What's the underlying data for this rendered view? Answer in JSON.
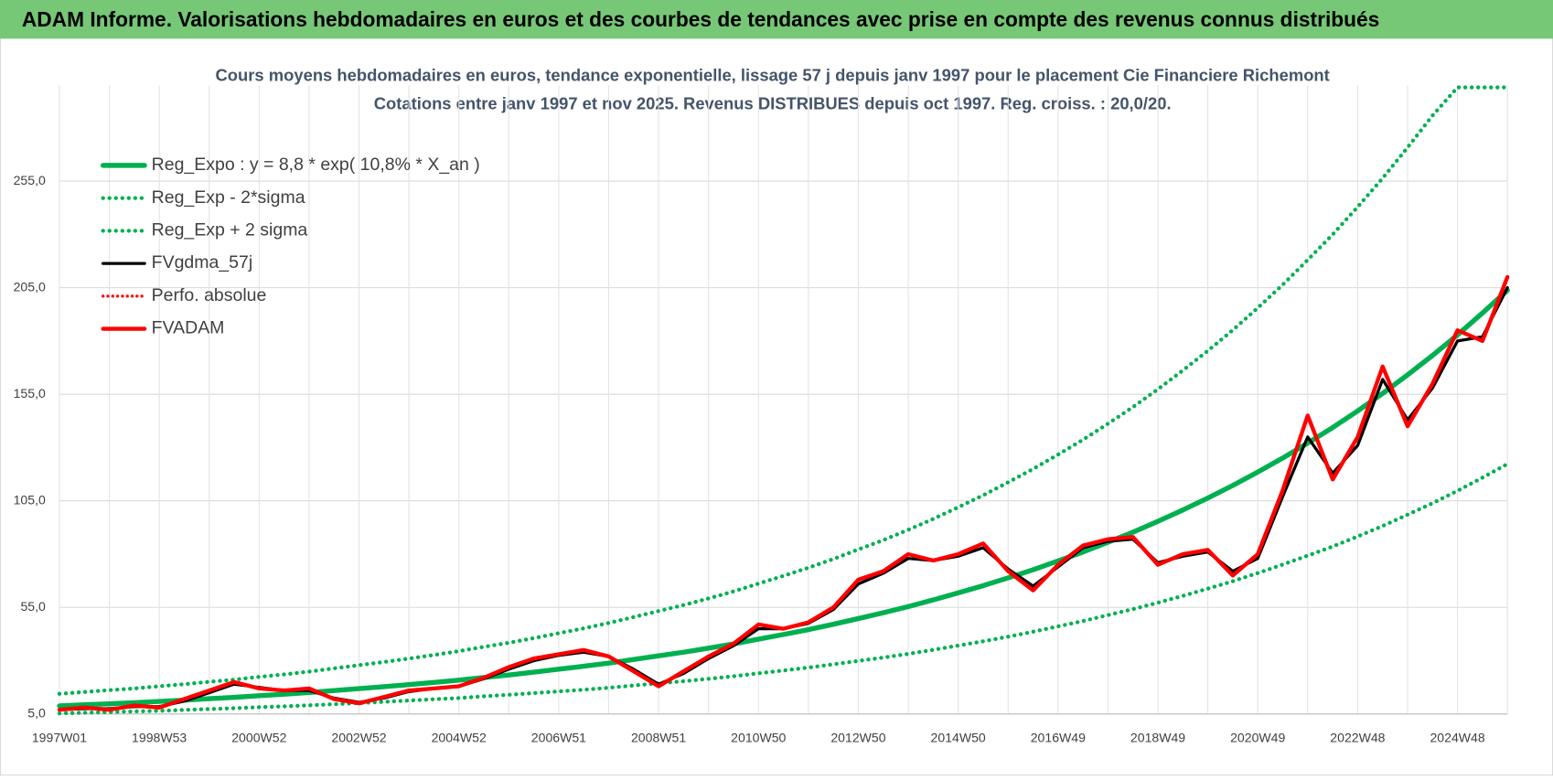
{
  "header": "ADAM Informe. Valorisations hebdomadaires en euros et des courbes de tendances avec prise en compte des revenus connus distribués",
  "chart_data": {
    "type": "line",
    "title": "Cours moyens hebdomadaires en euros, tendance exponentielle, lissage 57 j depuis janv 1997  pour le placement Cie Financiere Richemont",
    "subtitle": "Cotations entre janv 1997 et nov 2025. Revenus DISTRIBUES depuis oct 1997. Reg. croiss. : 20,0/20.",
    "categories": [
      "1997W01",
      null,
      null,
      null,
      "1998W53",
      null,
      null,
      null,
      "2000W52",
      null,
      null,
      null,
      "2002W52",
      null,
      null,
      null,
      "2004W52",
      null,
      null,
      null,
      "2006W51",
      null,
      null,
      null,
      "2008W51",
      null,
      null,
      null,
      "2010W50",
      null,
      null,
      null,
      "2012W50",
      null,
      null,
      null,
      "2014W50",
      null,
      null,
      null,
      "2016W49",
      null,
      null,
      null,
      "2018W49",
      null,
      null,
      null,
      "2020W49",
      null,
      null,
      null,
      "2022W48",
      null,
      null,
      null,
      "2024W48",
      null,
      null
    ],
    "ylim": [
      5,
      300
    ],
    "yticks": [
      {
        "value": 5,
        "label": "5,0"
      },
      {
        "value": 55,
        "label": "55,0"
      },
      {
        "value": 105,
        "label": "105,0"
      },
      {
        "value": 155,
        "label": "155,0"
      },
      {
        "value": 205,
        "label": "205,0"
      },
      {
        "value": 255,
        "label": "255,0"
      }
    ],
    "grid": true,
    "legend": "top-left",
    "series": [
      {
        "name": "Reg_Expo : y = 8,8 * exp( 10,8% *  X_an )",
        "color": "#00b050",
        "dash": "solid",
        "width": 5,
        "values": [
          8.8,
          9.3,
          9.8,
          10.3,
          10.9,
          11.5,
          12.2,
          12.8,
          13.6,
          14.3,
          15.1,
          16.0,
          16.9,
          17.8,
          18.8,
          19.8,
          20.9,
          22.1,
          23.3,
          24.6,
          26.0,
          27.4,
          28.9,
          30.6,
          32.3,
          34.0,
          35.9,
          37.9,
          40.1,
          42.3,
          44.6,
          47.1,
          49.8,
          52.5,
          55.4,
          58.5,
          61.8,
          65.2,
          68.9,
          72.7,
          76.8,
          81.0,
          85.6,
          90.3,
          95.4,
          100.7,
          106.3,
          112.2,
          118.5,
          125.1,
          132.1,
          139.4,
          147.2,
          155.4,
          164.1,
          173.2,
          182.9,
          193.1,
          203.8
        ]
      },
      {
        "name": "Reg_Exp - 2*sigma",
        "color": "#00b050",
        "dash": "dotted",
        "width": 4,
        "values": [
          5.3,
          5.6,
          5.9,
          6.2,
          6.5,
          6.9,
          7.3,
          7.7,
          8.2,
          8.6,
          9.1,
          9.6,
          10.1,
          10.7,
          11.3,
          11.9,
          12.5,
          13.3,
          14.0,
          14.8,
          15.6,
          16.4,
          17.3,
          18.4,
          19.4,
          20.4,
          21.5,
          22.7,
          24.1,
          25.4,
          26.8,
          28.3,
          29.9,
          31.5,
          33.2,
          35.1,
          37.1,
          39.1,
          41.3,
          43.6,
          46.1,
          48.6,
          51.4,
          54.2,
          57.2,
          60.4,
          63.8,
          67.3,
          71.1,
          75.1,
          79.3,
          83.6,
          88.3,
          93.2,
          98.5,
          103.9,
          109.7,
          115.9,
          122.3
        ]
      },
      {
        "name": "Reg_Exp + 2 sigma",
        "color": "#00b050",
        "dash": "dotted",
        "width": 4,
        "values": [
          14.5,
          15.3,
          16.2,
          17.0,
          18.0,
          19.0,
          20.1,
          21.1,
          22.4,
          23.6,
          24.9,
          26.4,
          27.9,
          29.4,
          31.0,
          32.7,
          34.5,
          36.5,
          38.4,
          40.6,
          42.9,
          45.2,
          47.7,
          50.5,
          53.3,
          56.1,
          59.2,
          62.5,
          66.2,
          69.8,
          73.6,
          77.7,
          82.2,
          86.6,
          91.4,
          96.5,
          102.0,
          107.6,
          113.7,
          120.0,
          126.7,
          133.7,
          141.2,
          149.0,
          157.4,
          166.2,
          175.4,
          185.1,
          195.5,
          206.4,
          218.0,
          230.0,
          242.9,
          256.4,
          270.8,
          285.8,
          299,
          299,
          299
        ]
      },
      {
        "name": "FVgdma_57j",
        "color": "#000000",
        "dash": "solid",
        "width": 3,
        "values": [
          7,
          7.5,
          7.5,
          8.5,
          8.5,
          11,
          15,
          19,
          17.5,
          16,
          16,
          12.5,
          10.5,
          12.5,
          15.5,
          17,
          18,
          21.5,
          26,
          30,
          32.5,
          34,
          32,
          26,
          19,
          24,
          31,
          37,
          45,
          45,
          47.5,
          54,
          66,
          71,
          78,
          77,
          79,
          83,
          73,
          65,
          74,
          83,
          86,
          87,
          76,
          79,
          81,
          72,
          78,
          107,
          135,
          118,
          131,
          162,
          143,
          158,
          180,
          182,
          205
        ]
      },
      {
        "name": "Perfo. absolue",
        "color": "#ff0000",
        "dash": "dotted",
        "width": 3,
        "values": [
          7,
          8,
          7,
          9,
          8,
          12,
          16,
          20,
          17,
          16,
          17,
          12,
          10,
          13,
          16,
          17,
          18,
          22,
          27,
          31,
          33,
          35,
          32,
          25,
          18,
          25,
          32,
          38,
          47,
          45,
          48,
          55,
          68,
          72,
          80,
          77,
          80,
          85,
          72,
          63,
          75,
          84,
          87,
          88,
          75,
          80,
          82,
          70,
          80,
          110,
          145,
          115,
          135,
          168,
          140,
          160,
          185,
          180,
          210
        ]
      },
      {
        "name": "FVADAM",
        "color": "#ff0000",
        "dash": "solid",
        "width": 4,
        "values": [
          7,
          8,
          7,
          9,
          8,
          12,
          16,
          20,
          17,
          16,
          17,
          12,
          10,
          13,
          16,
          17,
          18,
          22,
          27,
          31,
          33,
          35,
          32,
          25,
          18,
          25,
          32,
          38,
          47,
          45,
          48,
          55,
          68,
          72,
          80,
          77,
          80,
          85,
          72,
          63,
          75,
          84,
          87,
          88,
          75,
          80,
          82,
          70,
          80,
          110,
          145,
          115,
          135,
          168,
          140,
          160,
          185,
          180,
          210
        ]
      }
    ]
  }
}
